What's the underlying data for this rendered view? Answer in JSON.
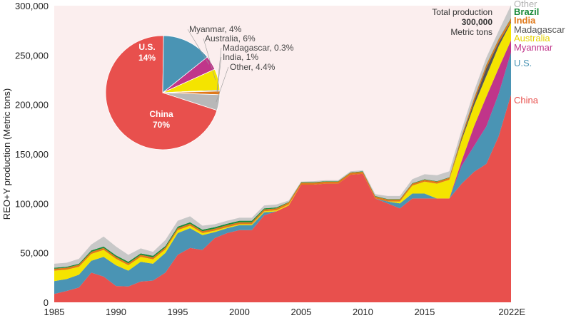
{
  "chart_data": [
    {
      "type": "area",
      "stacked": true,
      "ylabel": "REO+Y production (Metric tons)",
      "ylim": [
        0,
        300000
      ],
      "xlim": [
        1985,
        2022
      ],
      "yticks": [
        "0",
        "50,000",
        "100,000",
        "150,000",
        "200,000",
        "250,000",
        "300,000"
      ],
      "xticks": [
        "1985",
        "1990",
        "1995",
        "2000",
        "2005",
        "2010",
        "2015",
        "2022E"
      ],
      "grid": false,
      "x": [
        1985,
        1986,
        1987,
        1988,
        1989,
        1990,
        1991,
        1992,
        1993,
        1994,
        1995,
        1996,
        1997,
        1998,
        1999,
        2000,
        2001,
        2002,
        2003,
        2004,
        2005,
        2006,
        2007,
        2008,
        2009,
        2010,
        2011,
        2012,
        2013,
        2014,
        2015,
        2016,
        2017,
        2018,
        2019,
        2020,
        2021,
        2022
      ],
      "series": [
        {
          "name": "China",
          "color": "#e8504d",
          "values": [
            8500,
            11500,
            15000,
            30000,
            26000,
            16500,
            16000,
            21000,
            22000,
            30000,
            48000,
            55000,
            53000,
            65000,
            70000,
            73000,
            73000,
            88000,
            92000,
            98000,
            119000,
            119000,
            120000,
            120000,
            129000,
            130000,
            105000,
            100000,
            95000,
            105000,
            105000,
            105000,
            105000,
            120000,
            132000,
            140000,
            168000,
            210000
          ]
        },
        {
          "name": "U.S.",
          "color": "#4a94b4",
          "values": [
            13000,
            12000,
            13000,
            12000,
            20000,
            21000,
            16000,
            20000,
            17000,
            20000,
            22000,
            20000,
            15000,
            6000,
            5000,
            5000,
            5000,
            3000,
            0,
            0,
            0,
            0,
            0,
            0,
            0,
            0,
            0,
            2000,
            5000,
            5000,
            5000,
            0,
            0,
            18000,
            26000,
            38000,
            43000,
            43000
          ]
        },
        {
          "name": "Myanmar",
          "color": "#c0358a",
          "values": [
            0,
            0,
            0,
            0,
            0,
            0,
            0,
            0,
            0,
            0,
            0,
            0,
            0,
            0,
            0,
            0,
            0,
            0,
            0,
            0,
            0,
            0,
            0,
            0,
            0,
            0,
            0,
            0,
            0,
            0,
            0,
            0,
            0,
            5000,
            20000,
            30000,
            26000,
            12000
          ]
        },
        {
          "name": "Australia",
          "color": "#f4e400",
          "values": [
            10500,
            9500,
            8000,
            7000,
            7000,
            6500,
            5500,
            5000,
            4500,
            3500,
            3000,
            2500,
            2000,
            1500,
            1000,
            1000,
            1000,
            1000,
            1000,
            1000,
            0,
            0,
            0,
            0,
            0,
            0,
            0,
            0,
            2000,
            8000,
            12000,
            15000,
            19000,
            21000,
            21000,
            21000,
            22000,
            18000
          ]
        },
        {
          "name": "Madagascar",
          "color": "#555555",
          "values": [
            0,
            0,
            0,
            0,
            0,
            0,
            0,
            0,
            0,
            0,
            0,
            0,
            0,
            0,
            0,
            0,
            0,
            0,
            0,
            0,
            0,
            0,
            0,
            0,
            0,
            0,
            0,
            0,
            0,
            0,
            0,
            0,
            0,
            2000,
            4000,
            8000,
            4000,
            1000
          ]
        },
        {
          "name": "India",
          "color": "#e0791a",
          "values": [
            2000,
            2000,
            2000,
            2000,
            2000,
            2000,
            2000,
            2000,
            2000,
            2000,
            2000,
            2000,
            2000,
            2000,
            2000,
            2000,
            2000,
            2000,
            2000,
            2000,
            2000,
            2000,
            2000,
            2000,
            2000,
            2000,
            2000,
            2000,
            2000,
            2000,
            2000,
            2000,
            2000,
            2000,
            3000,
            3000,
            3000,
            3000
          ]
        },
        {
          "name": "Brazil",
          "color": "#1a8a3a",
          "values": [
            1000,
            1000,
            1000,
            1500,
            1500,
            1500,
            1500,
            1500,
            1500,
            1500,
            1500,
            1500,
            1500,
            1500,
            1500,
            1500,
            1500,
            1000,
            1000,
            500,
            500,
            500,
            500,
            500,
            500,
            500,
            500,
            500,
            500,
            500,
            500,
            500,
            500,
            500,
            500,
            500,
            500,
            500
          ]
        },
        {
          "name": "Other",
          "color": "#c8c8c8",
          "values": [
            4000,
            4000,
            5000,
            6000,
            10000,
            9000,
            7000,
            5000,
            4000,
            6000,
            6000,
            6000,
            4000,
            3000,
            3000,
            3000,
            3000,
            3000,
            3000,
            1500,
            500,
            1000,
            1000,
            1000,
            1000,
            1000,
            2000,
            3000,
            3000,
            4000,
            5000,
            6000,
            6000,
            6000,
            7000,
            7000,
            8000,
            13000
          ]
        }
      ],
      "annotation": {
        "line1": "Total production",
        "line2": "300,000",
        "line3": "Metric tons"
      }
    },
    {
      "type": "pie",
      "slices": [
        {
          "name": "China",
          "value": 70,
          "label": "China",
          "pct_label": "70%",
          "color": "#e8504d"
        },
        {
          "name": "U.S.",
          "value": 14,
          "label": "U.S.",
          "pct_label": "14%",
          "color": "#4a94b4"
        },
        {
          "name": "Myanmar",
          "value": 4,
          "label": "Myanmar, 4%",
          "color": "#c0358a"
        },
        {
          "name": "Australia",
          "value": 6,
          "label": "Australia, 6%",
          "color": "#f4e400"
        },
        {
          "name": "Madagascar",
          "value": 0.3,
          "label": "Madagascar, 0.3%",
          "color": "#555555"
        },
        {
          "name": "India",
          "value": 1,
          "label": "India, 1%",
          "color": "#e0791a"
        },
        {
          "name": "Other",
          "value": 4.4,
          "label": "Other, 4.4%",
          "color": "#b8b8b8"
        }
      ]
    }
  ],
  "style": {
    "plot_background": "#fbeeee"
  }
}
